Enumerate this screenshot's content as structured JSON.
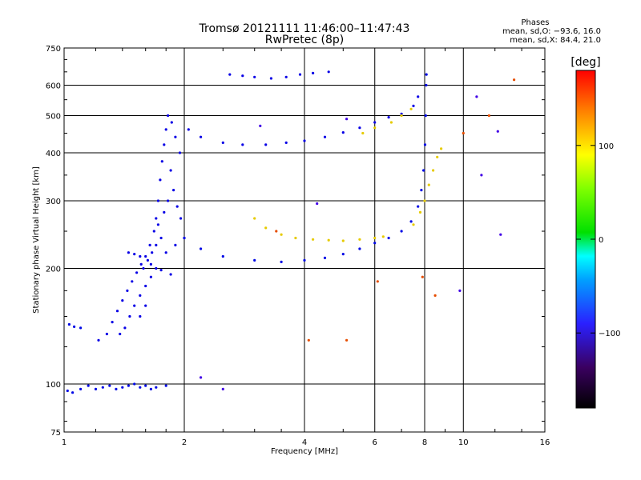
{
  "chart_data": {
    "type": "scatter",
    "title": "Tromsø 20121111 11:46:00–11:47:43",
    "subtitle": "RwPretec (8p)",
    "xlabel": "Frequency [MHz]",
    "ylabel": "Stationary phase Virtual Height [km]",
    "x_scale": "log",
    "y_scale": "log",
    "xlim": [
      1,
      16
    ],
    "ylim": [
      75,
      750
    ],
    "x_ticks": [
      1,
      2,
      4,
      6,
      8,
      10,
      16
    ],
    "x_tick_labels": [
      "1",
      "2",
      "4",
      "6",
      "8",
      "10",
      "16"
    ],
    "y_ticks": [
      75,
      100,
      200,
      300,
      400,
      500,
      600,
      750
    ],
    "y_tick_labels": [
      "75",
      "100",
      "200",
      "300",
      "400",
      "500",
      "600",
      "750"
    ],
    "grid": true,
    "stats": {
      "heading": "Phases",
      "line_o": "mean, sd,O: −93.6, 16.0",
      "line_x": "mean, sd,X:  84.4, 21.0"
    },
    "colorbar": {
      "label": "[deg]",
      "range": [
        -180,
        180
      ],
      "ticks": [
        100,
        0,
        -100
      ],
      "tick_labels": [
        "100",
        "0",
        "−100"
      ]
    },
    "series": [
      {
        "phase_deg": -95,
        "points": [
          [
            1.02,
            96
          ],
          [
            1.05,
            95
          ],
          [
            1.1,
            97
          ],
          [
            1.15,
            99
          ],
          [
            1.2,
            97
          ],
          [
            1.25,
            98
          ],
          [
            1.3,
            99
          ],
          [
            1.35,
            97
          ],
          [
            1.4,
            98
          ],
          [
            1.45,
            99
          ],
          [
            1.5,
            100
          ],
          [
            1.55,
            98
          ],
          [
            1.6,
            99
          ],
          [
            1.65,
            97
          ],
          [
            1.7,
            98
          ],
          [
            1.8,
            99
          ],
          [
            1.03,
            143
          ],
          [
            1.06,
            141
          ],
          [
            1.1,
            140
          ]
        ]
      },
      {
        "phase_deg": -100,
        "points": [
          [
            1.22,
            130
          ],
          [
            1.28,
            135
          ],
          [
            1.32,
            145
          ],
          [
            1.36,
            155
          ],
          [
            1.4,
            165
          ],
          [
            1.44,
            175
          ],
          [
            1.48,
            185
          ],
          [
            1.52,
            195
          ],
          [
            1.56,
            205
          ],
          [
            1.6,
            215
          ],
          [
            1.64,
            230
          ],
          [
            1.68,
            250
          ],
          [
            1.7,
            270
          ],
          [
            1.72,
            300
          ],
          [
            1.74,
            340
          ],
          [
            1.76,
            380
          ],
          [
            1.78,
            420
          ],
          [
            1.8,
            460
          ],
          [
            1.82,
            500
          ],
          [
            1.86,
            480
          ],
          [
            1.9,
            440
          ],
          [
            1.95,
            400
          ],
          [
            1.85,
            360
          ],
          [
            1.88,
            320
          ],
          [
            1.92,
            290
          ],
          [
            1.96,
            270
          ],
          [
            1.5,
            160
          ],
          [
            1.55,
            170
          ],
          [
            1.6,
            180
          ],
          [
            1.65,
            190
          ],
          [
            1.58,
            200
          ],
          [
            1.62,
            210
          ],
          [
            1.66,
            220
          ],
          [
            1.7,
            230
          ],
          [
            1.75,
            240
          ],
          [
            1.72,
            260
          ],
          [
            1.78,
            280
          ],
          [
            1.82,
            300
          ],
          [
            1.46,
            150
          ],
          [
            1.42,
            140
          ],
          [
            1.38,
            135
          ],
          [
            1.55,
            150
          ],
          [
            1.6,
            160
          ],
          [
            1.7,
            200
          ],
          [
            1.8,
            220
          ],
          [
            1.9,
            230
          ],
          [
            2.0,
            240
          ],
          [
            1.45,
            220
          ],
          [
            1.5,
            218
          ],
          [
            1.55,
            215
          ],
          [
            1.65,
            205
          ],
          [
            1.75,
            198
          ],
          [
            1.85,
            193
          ]
        ]
      },
      {
        "phase_deg": -95,
        "points": [
          [
            2.0,
            240
          ],
          [
            2.2,
            225
          ],
          [
            2.5,
            215
          ],
          [
            3.0,
            210
          ],
          [
            3.5,
            208
          ],
          [
            4.0,
            210
          ],
          [
            4.5,
            213
          ],
          [
            5.0,
            218
          ],
          [
            5.5,
            225
          ],
          [
            6.0,
            233
          ],
          [
            6.5,
            240
          ],
          [
            7.0,
            250
          ],
          [
            7.4,
            265
          ],
          [
            7.7,
            290
          ],
          [
            7.85,
            320
          ],
          [
            7.95,
            360
          ],
          [
            8.02,
            420
          ],
          [
            8.05,
            500
          ],
          [
            8.07,
            600
          ],
          [
            8.08,
            640
          ]
        ]
      },
      {
        "phase_deg": -100,
        "points": [
          [
            2.05,
            460
          ],
          [
            2.2,
            440
          ],
          [
            2.5,
            425
          ],
          [
            2.8,
            420
          ],
          [
            3.2,
            420
          ],
          [
            3.6,
            425
          ],
          [
            4.0,
            430
          ],
          [
            4.5,
            440
          ],
          [
            5.0,
            452
          ],
          [
            5.5,
            465
          ],
          [
            6.0,
            480
          ],
          [
            6.5,
            495
          ],
          [
            7.0,
            505
          ],
          [
            7.5,
            530
          ],
          [
            7.7,
            560
          ],
          [
            2.6,
            640
          ],
          [
            2.8,
            635
          ],
          [
            3.0,
            630
          ],
          [
            3.3,
            625
          ],
          [
            3.6,
            630
          ],
          [
            3.9,
            640
          ],
          [
            4.2,
            645
          ],
          [
            4.6,
            650
          ]
        ]
      },
      {
        "phase_deg": 100,
        "points": [
          [
            3.0,
            270
          ],
          [
            3.2,
            255
          ],
          [
            3.5,
            245
          ],
          [
            3.8,
            240
          ],
          [
            4.2,
            238
          ],
          [
            4.6,
            237
          ],
          [
            5.0,
            236
          ],
          [
            5.5,
            238
          ],
          [
            6.0,
            240
          ],
          [
            6.3,
            242
          ],
          [
            7.5,
            260
          ],
          [
            7.8,
            280
          ],
          [
            8.0,
            300
          ],
          [
            8.2,
            330
          ],
          [
            8.4,
            360
          ],
          [
            8.6,
            390
          ],
          [
            8.8,
            410
          ],
          [
            5.6,
            450
          ],
          [
            6.0,
            465
          ],
          [
            6.6,
            480
          ],
          [
            7.0,
            500
          ],
          [
            7.4,
            520
          ]
        ]
      },
      {
        "phase_deg": 150,
        "points": [
          [
            3.4,
            250
          ],
          [
            4.1,
            130
          ],
          [
            5.1,
            130
          ],
          [
            6.1,
            185
          ],
          [
            7.9,
            190
          ],
          [
            8.5,
            170
          ],
          [
            10.0,
            450
          ],
          [
            11.6,
            500
          ],
          [
            13.4,
            620
          ]
        ]
      },
      {
        "phase_deg": -120,
        "points": [
          [
            9.8,
            175
          ],
          [
            12.2,
            455
          ],
          [
            12.4,
            245
          ],
          [
            10.8,
            560
          ],
          [
            2.5,
            97
          ],
          [
            2.2,
            104
          ],
          [
            5.1,
            490
          ],
          [
            3.1,
            470
          ],
          [
            11.1,
            350
          ],
          [
            4.3,
            295
          ]
        ]
      }
    ]
  }
}
